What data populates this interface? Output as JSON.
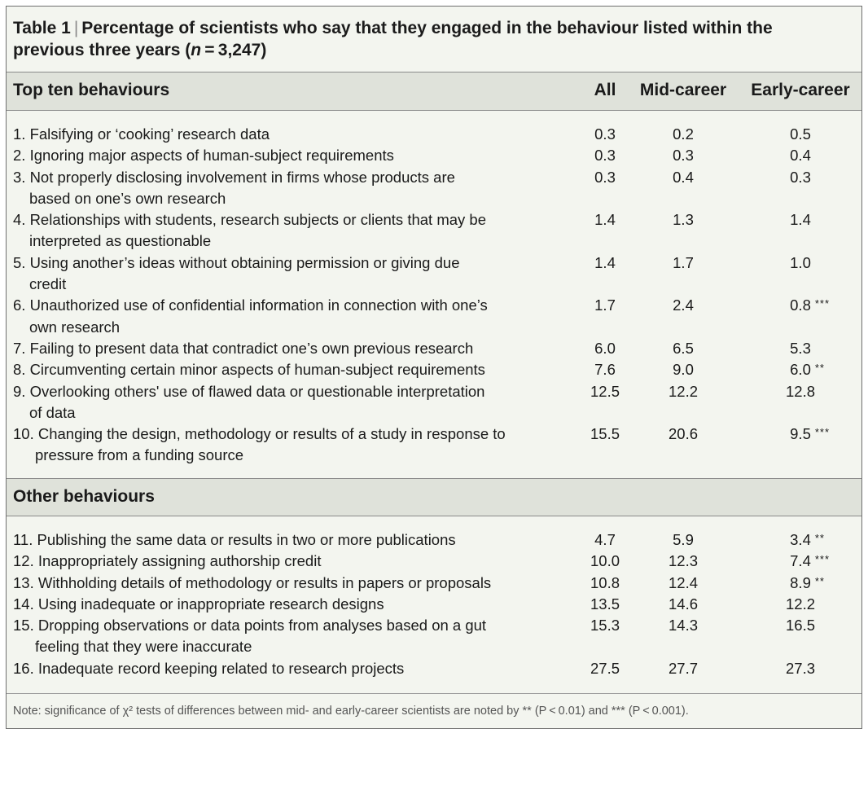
{
  "table": {
    "label": "Table 1",
    "title": "Percentage of scientists who say that they engaged in the behaviour listed within the previous three years (n = 3,247)",
    "title_line1": "Percentage of scientists who say that they engaged in the behaviour listed within the",
    "title_line2_prefix": "previous three years (",
    "title_line2_n": "n",
    "title_line2_suffix": " = 3,247)",
    "columns": [
      "All",
      "Mid-career",
      "Early-career"
    ],
    "section1_label": "Top ten behaviours",
    "section2_label": "Other behaviours",
    "top_ten": [
      {
        "line1": "1. Falsifying or ‘cooking’ research data",
        "line2": "",
        "all": "0.3",
        "mid": "0.2",
        "early": "0.5",
        "sig": ""
      },
      {
        "line1": "2. Ignoring major aspects of human-subject requirements",
        "line2": "",
        "all": "0.3",
        "mid": "0.3",
        "early": "0.4",
        "sig": ""
      },
      {
        "line1": "3. Not properly disclosing involvement in firms whose products are",
        "line2": "based on one’s own research",
        "all": "0.3",
        "mid": "0.4",
        "early": "0.3",
        "sig": ""
      },
      {
        "line1": "4. Relationships with students, research subjects or clients that may be",
        "line2": "interpreted as questionable",
        "all": "1.4",
        "mid": "1.3",
        "early": "1.4",
        "sig": ""
      },
      {
        "line1": "5. Using another’s ideas without obtaining permission or giving due",
        "line2": "credit",
        "all": "1.4",
        "mid": "1.7",
        "early": "1.0",
        "sig": ""
      },
      {
        "line1": "6. Unauthorized use of confidential information in connection with one’s",
        "line2": "own research",
        "all": "1.7",
        "mid": "2.4",
        "early": "0.8",
        "sig": "***"
      },
      {
        "line1": "7. Failing to present data that contradict one’s own previous research",
        "line2": "",
        "all": "6.0",
        "mid": "6.5",
        "early": "5.3",
        "sig": ""
      },
      {
        "line1": "8. Circumventing certain minor aspects of human-subject requirements",
        "line2": "",
        "all": "7.6",
        "mid": "9.0",
        "early": "6.0",
        "sig": "**"
      },
      {
        "line1": "9. Overlooking others' use of flawed data or questionable interpretation",
        "line2": "of data",
        "all": "12.5",
        "mid": "12.2",
        "early": "12.8",
        "sig": ""
      },
      {
        "line1": "10. Changing the design, methodology or results of a study in response to",
        "line2": "pressure from a funding source",
        "all": "15.5",
        "mid": "20.6",
        "early": "9.5",
        "sig": "***"
      }
    ],
    "other": [
      {
        "line1": "11. Publishing the same data or results in two or more publications",
        "line2": "",
        "all": "4.7",
        "mid": "5.9",
        "early": "3.4",
        "sig": "**"
      },
      {
        "line1": "12. Inappropriately assigning authorship credit",
        "line2": "",
        "all": "10.0",
        "mid": "12.3",
        "early": "7.4",
        "sig": "***"
      },
      {
        "line1": "13. Withholding details of methodology or results in papers or proposals",
        "line2": "",
        "all": "10.8",
        "mid": "12.4",
        "early": "8.9",
        "sig": "**"
      },
      {
        "line1": "14. Using inadequate or inappropriate research designs",
        "line2": "",
        "all": "13.5",
        "mid": "14.6",
        "early": "12.2",
        "sig": ""
      },
      {
        "line1": "15. Dropping observations or data points from analyses based on a gut",
        "line2": "feeling that they were inaccurate",
        "all": "15.3",
        "mid": "14.3",
        "early": "16.5",
        "sig": ""
      },
      {
        "line1": "16. Inadequate record keeping related to research projects",
        "line2": "",
        "all": "27.5",
        "mid": "27.7",
        "early": "27.3",
        "sig": ""
      }
    ],
    "note": "Note: significance of χ² tests of differences between mid- and early-career scientists are noted by ** (P < 0.01) and *** (P < 0.001)."
  }
}
